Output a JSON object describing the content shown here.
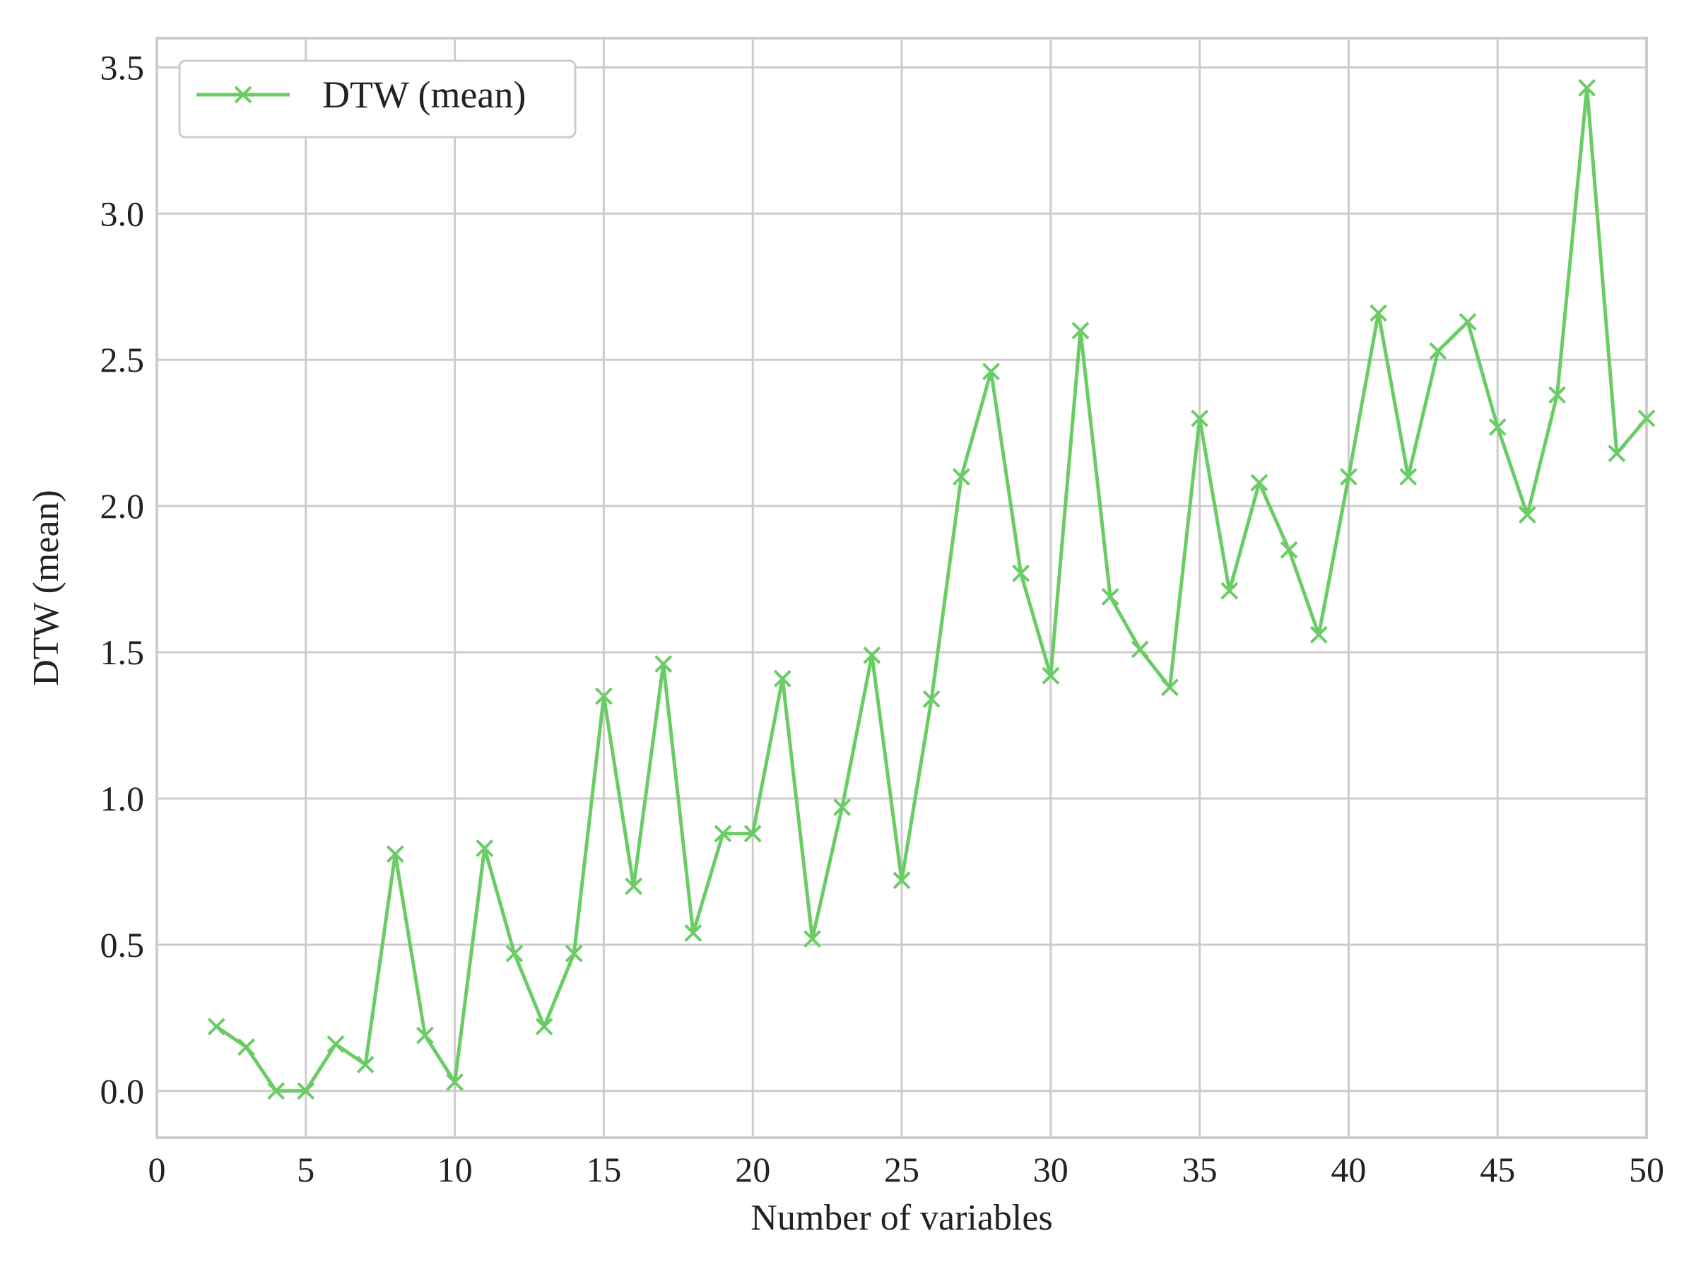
{
  "chart_data": {
    "type": "line",
    "title": "",
    "xlabel": "Number of variables",
    "ylabel": "DTW (mean)",
    "xlim": [
      0,
      50
    ],
    "ylim": [
      -0.16,
      3.6
    ],
    "xticks": [
      0,
      5,
      10,
      15,
      20,
      25,
      30,
      35,
      40,
      45,
      50
    ],
    "xtick_labels": [
      "0",
      "5",
      "10",
      "15",
      "20",
      "25",
      "30",
      "35",
      "40",
      "45",
      "50"
    ],
    "yticks": [
      0.0,
      0.5,
      1.0,
      1.5,
      2.0,
      2.5,
      3.0,
      3.5
    ],
    "ytick_labels": [
      "0.0",
      "0.5",
      "1.0",
      "1.5",
      "2.0",
      "2.5",
      "3.0",
      "3.5"
    ],
    "grid": true,
    "legend": {
      "position": "top-left",
      "entries": [
        "DTW (mean)"
      ]
    },
    "series": [
      {
        "name": "DTW (mean)",
        "color": "#6acc64",
        "marker": "x",
        "x": [
          2,
          3,
          4,
          5,
          6,
          7,
          8,
          9,
          10,
          11,
          12,
          13,
          14,
          15,
          16,
          17,
          18,
          19,
          20,
          21,
          22,
          23,
          24,
          25,
          26,
          27,
          28,
          29,
          30,
          31,
          32,
          33,
          34,
          35,
          36,
          37,
          38,
          39,
          40,
          41,
          42,
          43,
          44,
          45,
          46,
          47,
          48,
          49,
          50
        ],
        "y": [
          0.22,
          0.15,
          0.0,
          0.0,
          0.16,
          0.09,
          0.81,
          0.19,
          0.03,
          0.83,
          0.47,
          0.22,
          0.47,
          1.35,
          0.7,
          1.46,
          0.54,
          0.88,
          0.88,
          1.41,
          0.52,
          0.97,
          1.49,
          0.72,
          1.34,
          2.1,
          2.46,
          1.77,
          1.42,
          2.6,
          1.69,
          1.51,
          1.38,
          2.3,
          1.71,
          2.08,
          1.85,
          1.56,
          2.1,
          2.66,
          2.1,
          2.53,
          2.63,
          2.27,
          1.97,
          2.38,
          3.43,
          2.18,
          2.3
        ]
      }
    ]
  }
}
